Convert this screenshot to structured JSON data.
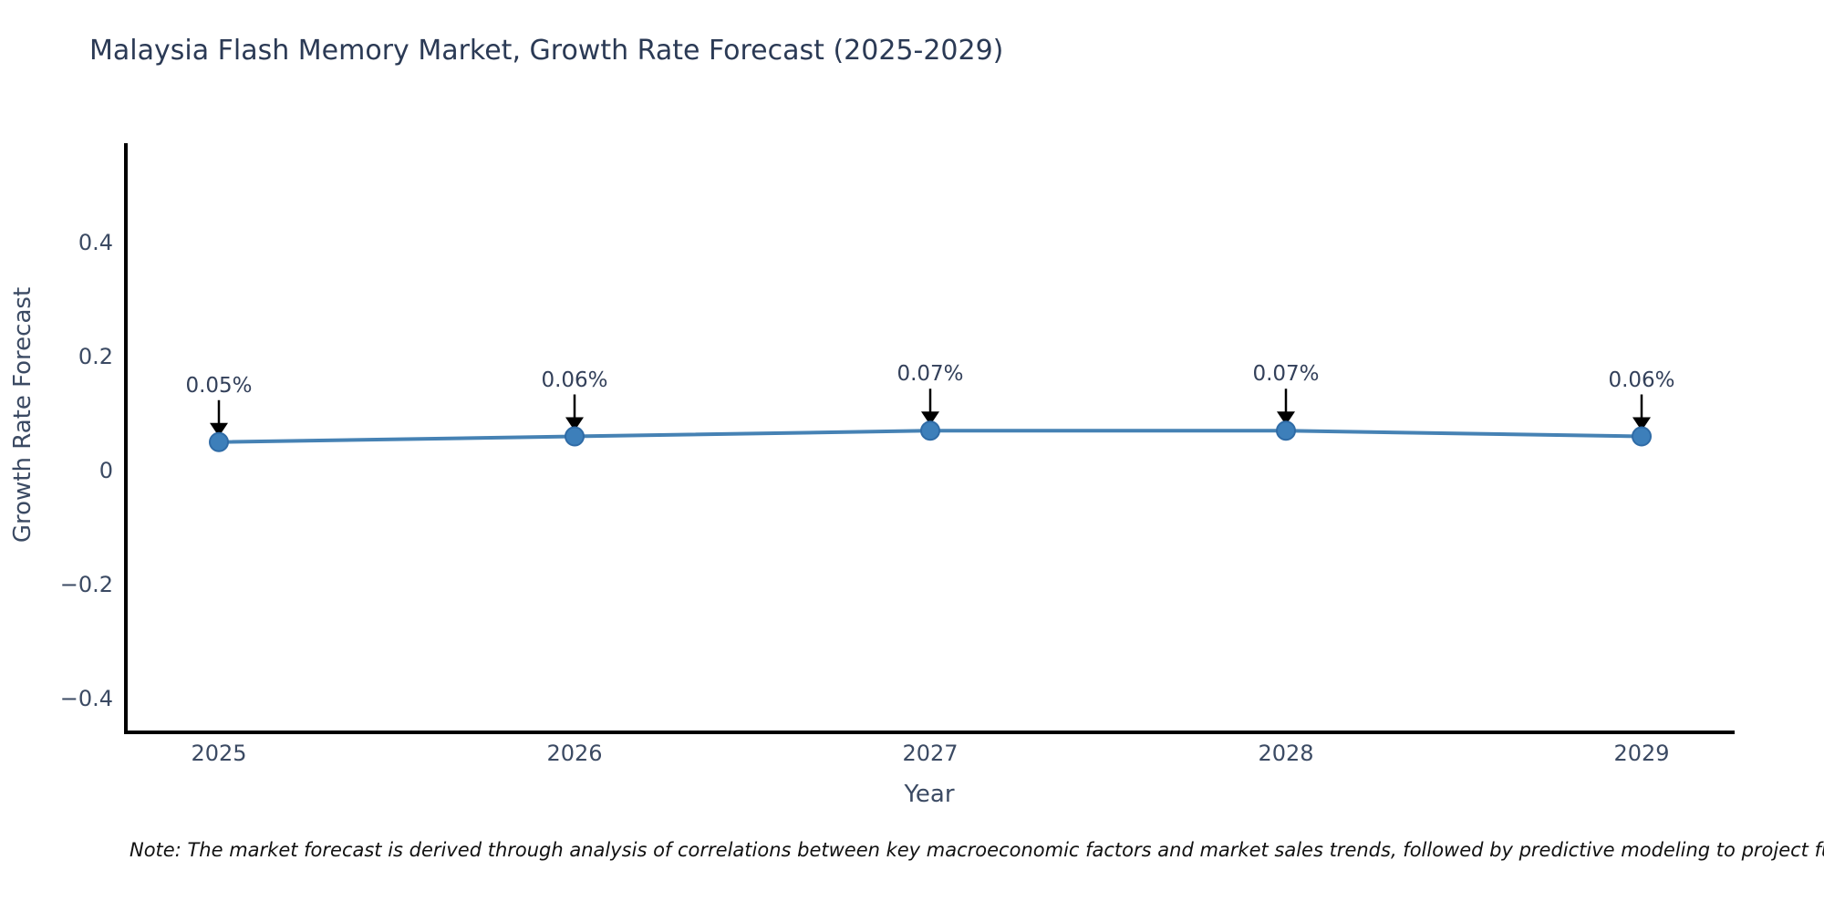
{
  "chart_data": {
    "type": "line",
    "title": "Malaysia Flash Memory Market, Growth Rate Forecast (2025-2029)",
    "xlabel": "Year",
    "ylabel": "Growth Rate Forecast",
    "categories": [
      2025,
      2026,
      2027,
      2028,
      2029
    ],
    "series": [
      {
        "name": "Growth Rate Forecast",
        "values": [
          0.05,
          0.06,
          0.07,
          0.07,
          0.06
        ]
      }
    ],
    "point_annotations": [
      "0.05%",
      "0.06%",
      "0.07%",
      "0.07%",
      "0.06%"
    ],
    "xtick_labels": [
      "2025",
      "2026",
      "2027",
      "2028",
      "2029"
    ],
    "ytick_values": [
      0.4,
      0.2,
      0,
      -0.2,
      -0.4
    ],
    "ytick_labels": [
      "0.4",
      "0.2",
      "0",
      "−0.2",
      "−0.4"
    ],
    "ylim": [
      -0.46,
      0.57
    ],
    "grid": false,
    "legend": "none",
    "annotation_style": "text-above-with-down-arrow",
    "colors": {
      "line": "#4682b4",
      "marker_fill": "#3d7fba",
      "marker_edge": "#2f6ba6",
      "arrow": "#000000",
      "tick_text": "#3b4a63",
      "title_text": "#2b3a55",
      "spine": "#000000",
      "background": "#ffffff"
    }
  },
  "note": "Note: The market forecast is derived through analysis of correlations between key macroeconomic factors and market sales trends, followed by predictive modeling to project future sales."
}
